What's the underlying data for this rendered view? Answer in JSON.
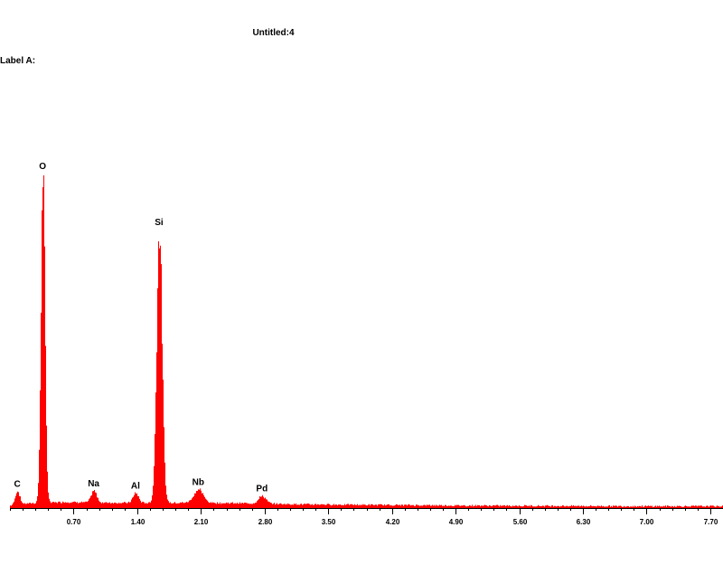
{
  "header": {
    "title": "Untitled:4",
    "label": "Label A:"
  },
  "chart_data": {
    "type": "area",
    "title": "Untitled:4",
    "xlabel": "",
    "ylabel": "",
    "xlim": [
      0.0,
      7.84
    ],
    "ylim": [
      0,
      100
    ],
    "color": "#ff0000",
    "x_ticks": [
      {
        "value": 0.7,
        "label": "0.70"
      },
      {
        "value": 1.4,
        "label": "1.40"
      },
      {
        "value": 2.1,
        "label": "2.10"
      },
      {
        "value": 2.8,
        "label": "2.80"
      },
      {
        "value": 3.5,
        "label": "3.50"
      },
      {
        "value": 4.2,
        "label": "4.20"
      },
      {
        "value": 4.9,
        "label": "4.90"
      },
      {
        "value": 5.6,
        "label": "5.60"
      },
      {
        "value": 6.3,
        "label": "6.30"
      },
      {
        "value": 7.0,
        "label": "7.00"
      },
      {
        "value": 7.7,
        "label": "7.70"
      }
    ],
    "peaks": [
      {
        "element": "C",
        "energy": 0.08,
        "height": 4.0,
        "width": 0.025
      },
      {
        "element": "O",
        "energy": 0.36,
        "height": 100,
        "width": 0.022
      },
      {
        "element": "Na",
        "energy": 0.92,
        "height": 3.5,
        "width": 0.03
      },
      {
        "element": "Al",
        "energy": 1.38,
        "height": 3.0,
        "width": 0.03
      },
      {
        "element": "Si",
        "energy": 1.64,
        "height": 83,
        "width": 0.03
      },
      {
        "element": "Nb",
        "energy": 2.07,
        "height": 4.0,
        "width": 0.05
      },
      {
        "element": "Pd",
        "energy": 2.77,
        "height": 2.3,
        "width": 0.04
      }
    ],
    "background": [
      {
        "energy": 0.0,
        "level": 0.5
      },
      {
        "energy": 0.2,
        "level": 1.2
      },
      {
        "energy": 0.6,
        "level": 1.6
      },
      {
        "energy": 1.0,
        "level": 1.4
      },
      {
        "energy": 1.5,
        "level": 1.3
      },
      {
        "energy": 2.0,
        "level": 1.4
      },
      {
        "energy": 2.6,
        "level": 1.2
      },
      {
        "energy": 3.2,
        "level": 0.9
      },
      {
        "energy": 4.0,
        "level": 0.7
      },
      {
        "energy": 5.0,
        "level": 0.5
      },
      {
        "energy": 6.0,
        "level": 0.4
      },
      {
        "energy": 7.0,
        "level": 0.3
      },
      {
        "energy": 7.84,
        "level": 0.3
      }
    ]
  }
}
